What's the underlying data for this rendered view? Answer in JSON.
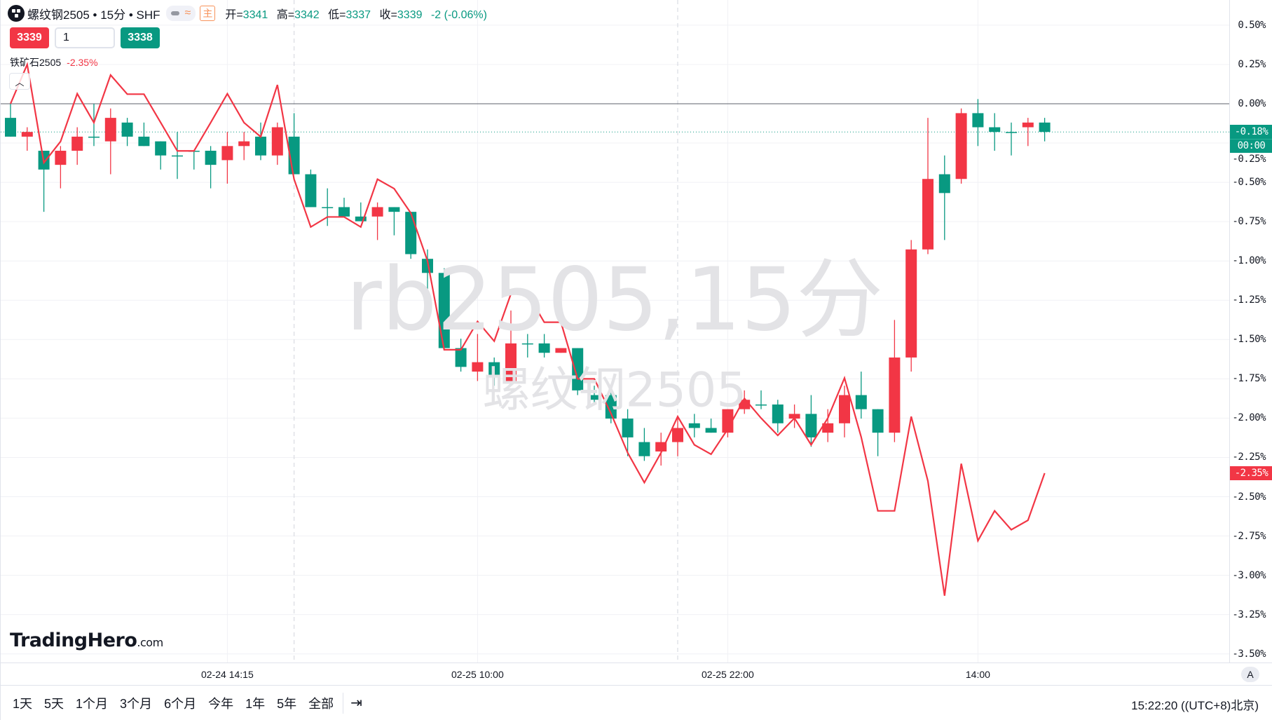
{
  "header": {
    "symbol_title": "螺纹钢2505 • 15分 • SHF",
    "main_indicator_label": "主",
    "ohlc": [
      {
        "label": "开=",
        "value": "3341"
      },
      {
        "label": "高=",
        "value": "3342"
      },
      {
        "label": "低=",
        "value": "3337"
      },
      {
        "label": "收=",
        "value": "3339"
      }
    ],
    "change": "-2 (-0.06%)"
  },
  "trade": {
    "sell_price": "3339",
    "quantity": "1",
    "buy_price": "3338"
  },
  "compare": {
    "symbol": "铁矿石2505",
    "change": "-2.35%"
  },
  "watermark": {
    "line1": "rb2505,15分",
    "line2": "螺纹钢2505"
  },
  "logo": {
    "name": "TradingHero",
    "suffix": ".com"
  },
  "colors": {
    "up": "#f23645",
    "down": "#089981",
    "compare_line": "#f23645",
    "grid": "#f0f1f5"
  },
  "y_axis": {
    "ticks": [
      "0.50%",
      "0.25%",
      "0.00%",
      "-0.25%",
      "-0.50%",
      "-0.75%",
      "-1.00%",
      "-1.25%",
      "-1.50%",
      "-1.75%",
      "-2.00%",
      "-2.25%",
      "-2.50%",
      "-2.75%",
      "-3.00%",
      "-3.25%",
      "-3.50%"
    ],
    "current_badge": {
      "value": "-0.18%",
      "countdown": "00:00"
    },
    "compare_badge": "-2.35%",
    "auto_label": "A"
  },
  "x_axis": {
    "labels": [
      {
        "text": "02-24 14:15",
        "bar": 13
      },
      {
        "text": "02-25 10:00",
        "bar": 28
      },
      {
        "text": "02-25 22:00",
        "bar": 43
      },
      {
        "text": "14:00",
        "bar": 58
      }
    ],
    "session_breaks": [
      17,
      40
    ]
  },
  "chart_data": {
    "type": "candlestick",
    "scale": "percent",
    "base_price": 3345,
    "ylim": [
      -3.5,
      0.5
    ],
    "grid": true,
    "candles": [
      [
        3342,
        3345,
        3338,
        3338
      ],
      [
        3338,
        3340,
        3335,
        3339
      ],
      [
        3335,
        3335,
        3322,
        3331
      ],
      [
        3332,
        3336,
        3327,
        3335
      ],
      [
        3335,
        3340,
        3332,
        3338
      ],
      [
        3338,
        3345,
        3336,
        3338
      ],
      [
        3337,
        3344,
        3330,
        3342
      ],
      [
        3341,
        3342,
        3336,
        3338
      ],
      [
        3338,
        3341,
        3336,
        3336
      ],
      [
        3337,
        3337,
        3331,
        3334
      ],
      [
        3334,
        3339,
        3329,
        3334
      ],
      [
        3335,
        3335,
        3331,
        3335
      ],
      [
        3335,
        3336,
        3327,
        3332
      ],
      [
        3333,
        3339,
        3328,
        3336
      ],
      [
        3336,
        3339,
        3333,
        3337
      ],
      [
        3338,
        3341,
        3333,
        3334
      ],
      [
        3334,
        3341,
        3332,
        3340
      ],
      [
        3338,
        3343,
        3330,
        3330
      ],
      [
        3330,
        3331,
        3323,
        3323
      ],
      [
        3323,
        3327,
        3319,
        3323
      ],
      [
        3323,
        3325,
        3321,
        3321
      ],
      [
        3321,
        3324,
        3320,
        3320
      ],
      [
        3321,
        3324,
        3316,
        3323
      ],
      [
        3323,
        3323,
        3317,
        3322
      ],
      [
        3322,
        3322,
        3312,
        3313
      ],
      [
        3312,
        3314,
        3305,
        3309
      ],
      [
        3309,
        3310,
        3293,
        3293
      ],
      [
        3293,
        3295,
        3288,
        3289
      ],
      [
        3288,
        3296,
        3286,
        3290
      ],
      [
        3290,
        3291,
        3285,
        3287
      ],
      [
        3286,
        3301,
        3285,
        3294
      ],
      [
        3294,
        3296,
        3291,
        3294
      ],
      [
        3294,
        3296,
        3291,
        3292
      ],
      [
        3292,
        3293,
        3292,
        3293
      ],
      [
        3293,
        3293,
        3283,
        3284
      ],
      [
        3283,
        3285,
        3281,
        3282
      ],
      [
        3283,
        3285,
        3277,
        3278
      ],
      [
        3278,
        3280,
        3270,
        3274
      ],
      [
        3273,
        3276,
        3269,
        3270
      ],
      [
        3271,
        3275,
        3268,
        3273
      ],
      [
        3273,
        3278,
        3270,
        3276
      ],
      [
        3277,
        3279,
        3274,
        3276
      ],
      [
        3276,
        3278,
        3275,
        3275
      ],
      [
        3275,
        3280,
        3274,
        3280
      ],
      [
        3280,
        3284,
        3279,
        3282
      ],
      [
        3281,
        3284,
        3280,
        3281
      ],
      [
        3281,
        3282,
        3275,
        3277
      ],
      [
        3278,
        3281,
        3276,
        3279
      ],
      [
        3279,
        3283,
        3272,
        3274
      ],
      [
        3275,
        3280,
        3273,
        3277
      ],
      [
        3277,
        3285,
        3274,
        3283
      ],
      [
        3283,
        3288,
        3278,
        3280
      ],
      [
        3280,
        3280,
        3270,
        3275
      ],
      [
        3275,
        3299,
        3273,
        3291
      ],
      [
        3291,
        3316,
        3288,
        3314
      ],
      [
        3314,
        3342,
        3313,
        3329
      ],
      [
        3330,
        3334,
        3316,
        3326
      ],
      [
        3329,
        3344,
        3328,
        3343
      ],
      [
        3343,
        3346,
        3336,
        3340
      ],
      [
        3340,
        3343,
        3335,
        3339
      ],
      [
        3339,
        3341,
        3334,
        3339
      ],
      [
        3340,
        3342,
        3336,
        3341
      ],
      [
        3341,
        3342,
        3337,
        3339
      ]
    ],
    "compare_series": {
      "name": "铁矿石2505",
      "values": [
        0.0,
        0.25,
        -0.375,
        -0.24,
        0.064,
        -0.12,
        0.183,
        0.061,
        0.061,
        -0.119,
        -0.3,
        -0.3,
        -0.12,
        0.064,
        -0.12,
        -0.21,
        0.12,
        -0.48,
        -0.784,
        -0.72,
        -0.72,
        -0.784,
        -0.48,
        -0.54,
        -0.695,
        -1.0,
        -1.565,
        -1.565,
        -1.385,
        -1.51,
        -1.21,
        -1.21,
        -1.39,
        -1.39,
        -1.75,
        -1.75,
        -1.97,
        -2.22,
        -2.41,
        -2.22,
        -1.99,
        -2.17,
        -2.23,
        -2.07,
        -1.875,
        -2.0,
        -2.11,
        -2.0,
        -2.17,
        -2.0,
        -1.745,
        -2.12,
        -2.59,
        -2.59,
        -1.99,
        -2.4,
        -3.13,
        -2.29,
        -2.78,
        -2.59,
        -2.71,
        -2.65,
        -2.35
      ]
    }
  },
  "bottom_bar": {
    "ranges": [
      "1天",
      "5天",
      "1个月",
      "3个月",
      "6个月",
      "今年",
      "1年",
      "5年",
      "全部"
    ],
    "goto_icon": "calendar-arrow-icon",
    "clock": "15:22:20 ((UTC+8)北京)"
  }
}
